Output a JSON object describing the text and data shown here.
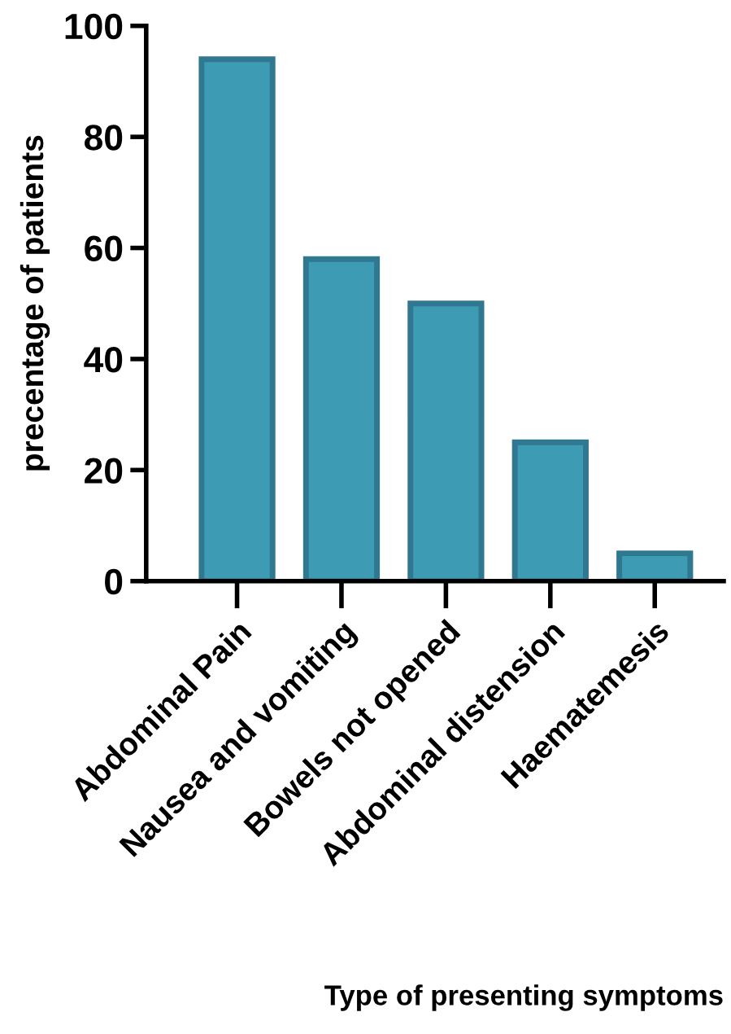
{
  "chart_data": {
    "type": "bar",
    "xlabel": "Type of presenting symptoms",
    "ylabel": "precentage of patients",
    "categories": [
      "Abdominal Pain",
      "Nausea and vomiting",
      "Bowels not opened",
      "Abdominal distension",
      "Haematemesis"
    ],
    "values": [
      94,
      58,
      50,
      25,
      5
    ],
    "color": "#3e9bb4",
    "ylim": [
      0,
      100
    ],
    "yticks": [
      0,
      20,
      40,
      60,
      80,
      100
    ],
    "grid": false,
    "legend": false
  }
}
